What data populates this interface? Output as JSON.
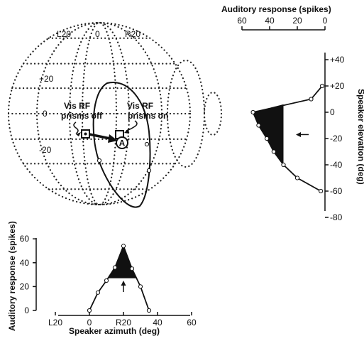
{
  "chart_data": [
    {
      "type": "diagram",
      "grid_labels": {
        "azimuth": [
          "L20",
          "0",
          "R20"
        ],
        "elevation": [
          "+20",
          "0",
          "-20"
        ]
      },
      "annotations": {
        "vis_rf_off": [
          "Vis RF",
          "prisms off"
        ],
        "vis_rf_on": [
          "Vis RF",
          "prisms on"
        ],
        "auditory_rf_marker": "A"
      }
    },
    {
      "type": "line",
      "orientation": "vertical",
      "xlabel": "Auditory response (spikes)",
      "ylabel": "Speaker elevation (deg)",
      "x_ticks": [
        "60",
        "40",
        "20",
        "0"
      ],
      "y_ticks": [
        "+40",
        "+20",
        "0",
        "-20",
        "-40",
        "-60",
        "-80"
      ],
      "xlim": [
        60,
        0
      ],
      "ylim": [
        -80,
        40
      ],
      "elevation": [
        20,
        10,
        0,
        -10,
        -20,
        -30,
        -40,
        -50,
        -60
      ],
      "response": [
        2,
        10,
        52,
        48,
        42,
        37,
        30,
        20,
        3
      ],
      "shaded_between": [
        0,
        -40
      ],
      "shift_arrow_at": -17
    },
    {
      "type": "line",
      "xlabel": "Speaker azimuth (deg)",
      "ylabel": "Auditory response (spikes)",
      "x_ticks": [
        "L20",
        "0",
        "R20",
        "40",
        "60"
      ],
      "y_ticks": [
        "0",
        "20",
        "40",
        "60"
      ],
      "xlim": [
        -20,
        60
      ],
      "ylim": [
        0,
        60
      ],
      "azimuth": [
        0,
        5,
        10,
        15,
        20,
        25,
        30,
        35
      ],
      "response": [
        0,
        15,
        25,
        36,
        54,
        35,
        20,
        0
      ],
      "shaded_above": 27,
      "shift_arrow_at": 20
    }
  ]
}
